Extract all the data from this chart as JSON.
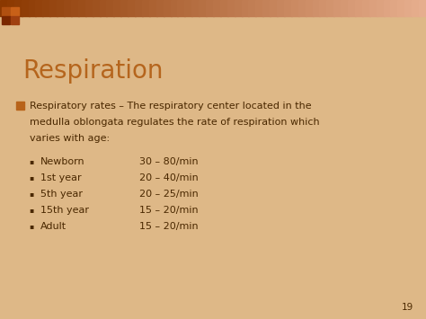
{
  "background_color": "#deb887",
  "title": "Respiration",
  "title_color": "#b5651d",
  "title_fontsize": 20,
  "bullet_square_color": "#b8631a",
  "main_bullet_lines": [
    "Respiratory rates – The respiratory center located in the",
    "medulla oblongata regulates the rate of respiration which",
    "varies with age:"
  ],
  "sub_bullets": [
    [
      "Newborn",
      "30 – 80/min"
    ],
    [
      "1st year",
      "20 – 40/min"
    ],
    [
      "5th year",
      "20 – 25/min"
    ],
    [
      "15th year",
      "15 – 20/min"
    ],
    [
      "Adult",
      "15 – 20/min"
    ]
  ],
  "text_color": "#4a2800",
  "page_number": "19",
  "top_bar_left_color": "#8B3800",
  "top_bar_right_color": "#e8b090",
  "sq_colors": [
    "#b05010",
    "#c86018",
    "#7a2800",
    "#a04010"
  ]
}
